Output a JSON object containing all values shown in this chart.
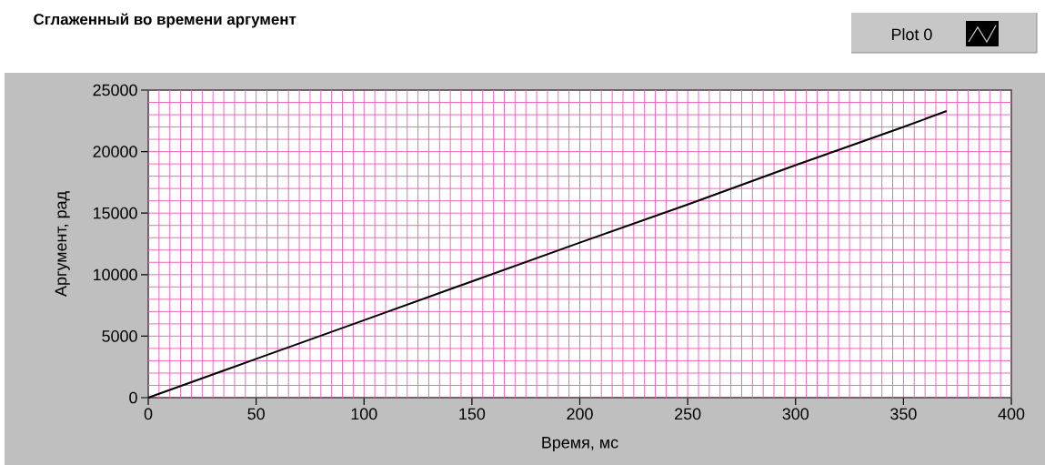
{
  "chart_data": {
    "type": "line",
    "title": "Сглаженный во времени аргумент",
    "xlabel": "Время, мс",
    "ylabel": "Аргумент, рад",
    "x": [
      0,
      50,
      100,
      150,
      200,
      250,
      300,
      350,
      370
    ],
    "series": [
      {
        "name": "Plot 0",
        "color": "#000000",
        "values": [
          0,
          3150,
          6300,
          9450,
          12600,
          15700,
          18900,
          22000,
          23300
        ]
      }
    ],
    "xlim": [
      0,
      400
    ],
    "ylim": [
      0,
      25000
    ],
    "xticks": [
      0,
      {
        "value": 5,
        "label": null
      },
      {
        "value": 10,
        "label": null
      },
      {
        "value": 15,
        "label": null
      },
      {
        "value": 20,
        "label": null
      },
      {
        "value": 25,
        "label": null
      },
      {
        "value": 30,
        "label": null
      },
      {
        "value": 35,
        "label": null
      },
      {
        "value": 40,
        "label": null
      },
      {
        "value": 45,
        "label": null
      },
      50,
      {
        "value": 55,
        "label": null
      },
      {
        "value": 60,
        "label": null
      },
      {
        "value": 65,
        "label": null
      },
      {
        "value": 70,
        "label": null
      },
      {
        "value": 75,
        "label": null
      },
      {
        "value": 80,
        "label": null
      },
      {
        "value": 85,
        "label": null
      },
      {
        "value": 90,
        "label": null
      },
      {
        "value": 95,
        "label": null
      },
      100,
      {
        "value": 105,
        "label": null
      },
      {
        "value": 110,
        "label": null
      },
      {
        "value": 115,
        "label": null
      },
      {
        "value": 120,
        "label": null
      },
      {
        "value": 125,
        "label": null
      },
      {
        "value": 130,
        "label": null
      },
      {
        "value": 135,
        "label": null
      },
      {
        "value": 140,
        "label": null
      },
      {
        "value": 145,
        "label": null
      },
      150,
      {
        "value": 155,
        "label": null
      },
      {
        "value": 160,
        "label": null
      },
      {
        "value": 165,
        "label": null
      },
      {
        "value": 170,
        "label": null
      },
      {
        "value": 175,
        "label": null
      },
      {
        "value": 180,
        "label": null
      },
      {
        "value": 185,
        "label": null
      },
      {
        "value": 190,
        "label": null
      },
      {
        "value": 195,
        "label": null
      },
      200,
      {
        "value": 205,
        "label": null
      },
      {
        "value": 210,
        "label": null
      },
      {
        "value": 215,
        "label": null
      },
      {
        "value": 220,
        "label": null
      },
      {
        "value": 225,
        "label": null
      },
      {
        "value": 230,
        "label": null
      },
      {
        "value": 235,
        "label": null
      },
      {
        "value": 240,
        "label": null
      },
      {
        "value": 245,
        "label": null
      },
      250,
      {
        "value": 255,
        "label": null
      },
      {
        "value": 260,
        "label": null
      },
      {
        "value": 265,
        "label": null
      },
      {
        "value": 270,
        "label": null
      },
      {
        "value": 275,
        "label": null
      },
      {
        "value": 280,
        "label": null
      },
      {
        "value": 285,
        "label": null
      },
      {
        "value": 290,
        "label": null
      },
      {
        "value": 295,
        "label": null
      },
      300,
      {
        "value": 305,
        "label": null
      },
      {
        "value": 310,
        "label": null
      },
      {
        "value": 315,
        "label": null
      },
      {
        "value": 320,
        "label": null
      },
      {
        "value": 325,
        "label": null
      },
      {
        "value": 330,
        "label": null
      },
      {
        "value": 335,
        "label": null
      },
      {
        "value": 340,
        "label": null
      },
      {
        "value": 345,
        "label": null
      },
      350,
      {
        "value": 355,
        "label": null
      },
      {
        "value": 360,
        "label": null
      },
      {
        "value": 365,
        "label": null
      },
      {
        "value": 370,
        "label": null
      },
      {
        "value": 375,
        "label": null
      },
      {
        "value": 380,
        "label": null
      },
      {
        "value": 385,
        "label": null
      },
      {
        "value": 390,
        "label": null
      },
      {
        "value": 395,
        "label": null
      },
      400
    ],
    "yticks": [
      0,
      {
        "value": 1000,
        "label": null
      },
      {
        "value": 2000,
        "label": null
      },
      {
        "value": 3000,
        "label": null
      },
      {
        "value": 4000,
        "label": null
      },
      5000,
      {
        "value": 6000,
        "label": null
      },
      {
        "value": 7000,
        "label": null
      },
      {
        "value": 8000,
        "label": null
      },
      {
        "value": 9000,
        "label": null
      },
      10000,
      {
        "value": 11000,
        "label": null
      },
      {
        "value": 12000,
        "label": null
      },
      {
        "value": 13000,
        "label": null
      },
      {
        "value": 14000,
        "label": null
      },
      15000,
      {
        "value": 16000,
        "label": null
      },
      {
        "value": 17000,
        "label": null
      },
      {
        "value": 18000,
        "label": null
      },
      {
        "value": 19000,
        "label": null
      },
      20000,
      {
        "value": 21000,
        "label": null
      },
      {
        "value": 22000,
        "label": null
      },
      {
        "value": 23000,
        "label": null
      },
      {
        "value": 24000,
        "label": null
      },
      25000
    ],
    "grid": true,
    "legend": "top right",
    "marker": "none",
    "line_style": "solid"
  }
}
